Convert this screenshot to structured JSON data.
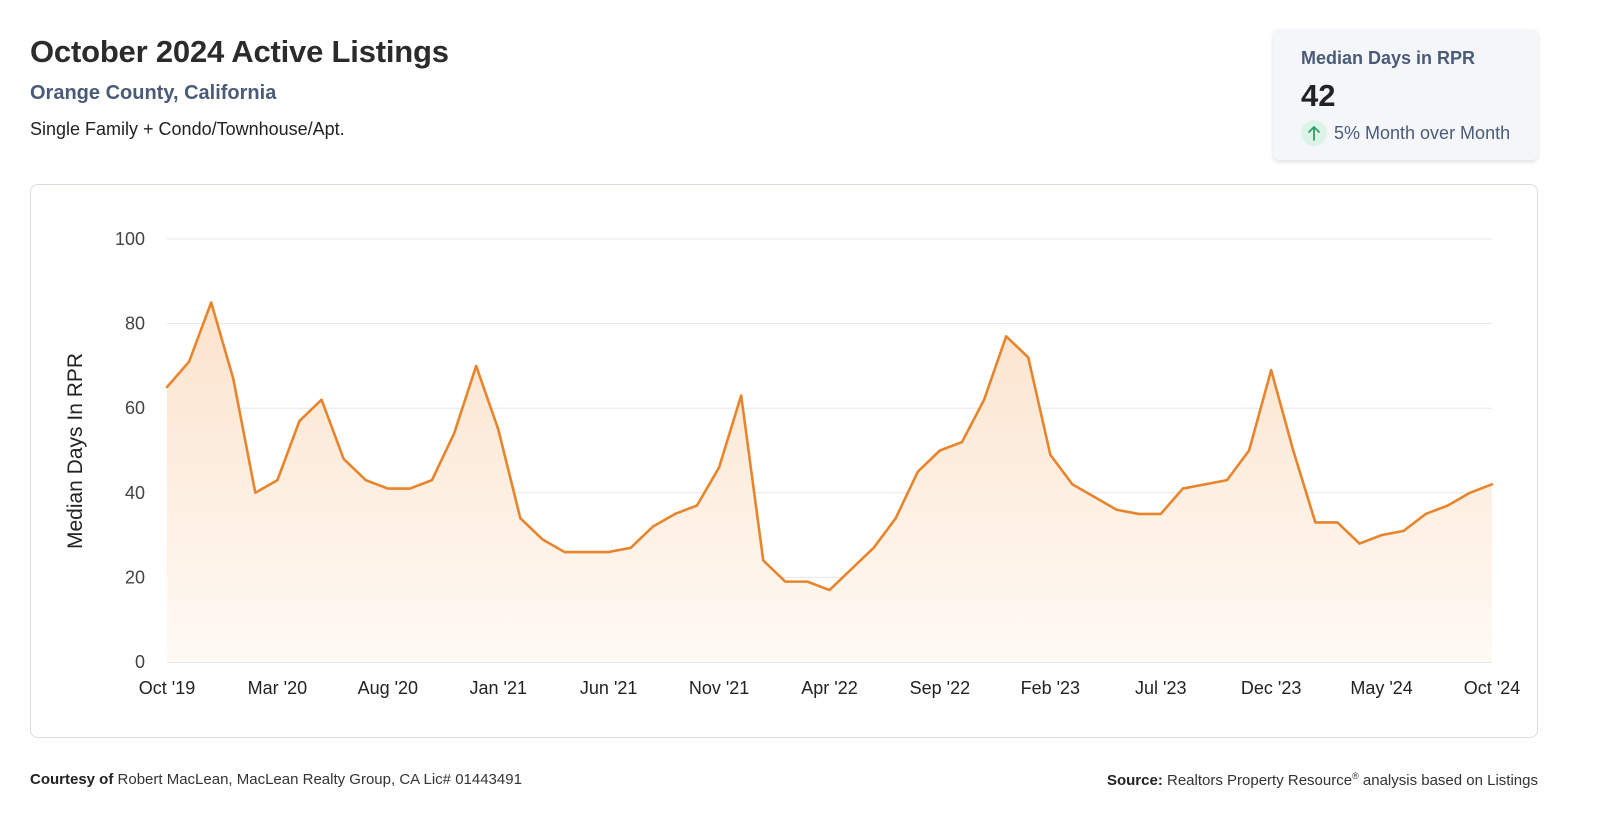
{
  "header": {
    "title": "October 2024 Active Listings",
    "subtitle": "Orange County, California",
    "description": "Single Family + Condo/Townhouse/Apt."
  },
  "kpi": {
    "label": "Median Days in RPR",
    "value": "42",
    "change_text": "5% Month over Month",
    "direction_icon": "arrow-up-icon"
  },
  "footer": {
    "courtesy_label": "Courtesy of",
    "courtesy_text": "Robert MacLean, MacLean Realty Group, CA Lic# 01443491",
    "source_label": "Source:",
    "source_text_a": "Realtors Property Resource",
    "source_reg": "®",
    "source_text_b": " analysis based on Listings"
  },
  "colors": {
    "line": "#e8842c",
    "area_top": "#fbe3cc",
    "area_bottom": "#fffaf5",
    "grid": "#e6e6e6",
    "accent_text": "#4a5b78",
    "arrow_up": "#2e9e6a"
  },
  "chart_data": {
    "type": "area",
    "title": "",
    "xlabel": "",
    "ylabel": "Median Days In RPR",
    "ylim": [
      0,
      100
    ],
    "yticks": [
      0,
      20,
      40,
      60,
      80,
      100
    ],
    "grid": true,
    "x_tick_labels": [
      "Oct '19",
      "Mar '20",
      "Aug '20",
      "Jan '21",
      "Jun '21",
      "Nov '21",
      "Apr '22",
      "Sep '22",
      "Feb '23",
      "Jul '23",
      "Dec '23",
      "May '24",
      "Oct '24"
    ],
    "x_tick_every": 5,
    "series": [
      {
        "values": [
          65,
          71,
          85,
          67,
          40,
          43,
          57,
          62,
          48,
          43,
          41,
          41,
          43,
          54,
          70,
          55,
          34,
          29,
          26,
          26,
          26,
          27,
          32,
          35,
          37,
          46,
          63,
          24,
          19,
          19,
          17,
          22,
          27,
          34,
          45,
          50,
          52,
          62,
          77,
          72,
          49,
          42,
          39,
          36,
          35,
          35,
          41,
          42,
          43,
          50,
          69,
          50,
          33,
          33,
          28,
          30,
          31,
          35,
          37,
          40,
          42
        ]
      }
    ]
  }
}
